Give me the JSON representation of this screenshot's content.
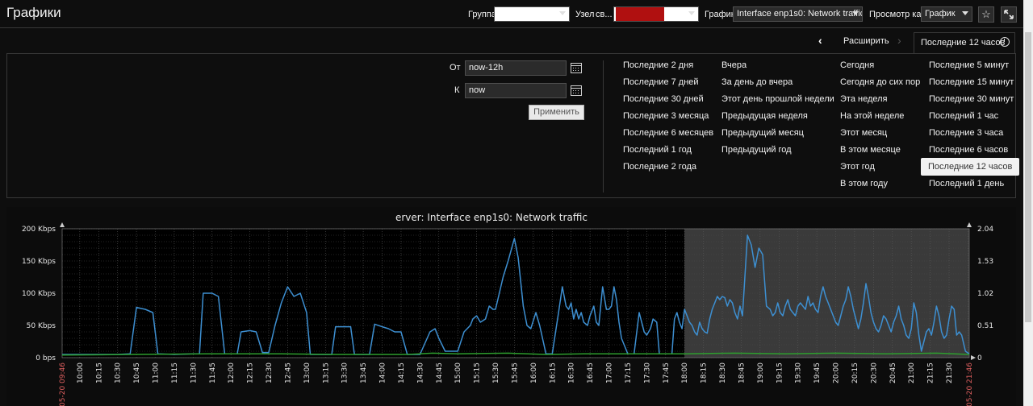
{
  "header": {
    "title": "Графики",
    "group_label": "Группа",
    "host_label": "Узел",
    "host_value": "св...",
    "graph_label": "График",
    "graph_value": "Interface enp1s0: Network traffic",
    "view_label": "Просмотр как",
    "view_value": "График"
  },
  "timebar": {
    "zoom_out": "Расширить",
    "current_period": "Последние 12 часов"
  },
  "filter": {
    "from_label": "От",
    "from_value": "now-12h",
    "to_label": "К",
    "to_value": "now",
    "apply": "Применить",
    "quick_ranges": [
      [
        "Последние 2 дня",
        "Последние 7 дней",
        "Последние 30 дней",
        "Последние 3 месяца",
        "Последние 6 месяцев",
        "Последний 1 год",
        "Последние 2 года"
      ],
      [
        "Вчера",
        "За день до вчера",
        "Этот день прошлой недели",
        "Предыдущая неделя",
        "Предыдущий месяц",
        "Предыдущий год"
      ],
      [
        "Сегодня",
        "Сегодня до сих пор",
        "Эта неделя",
        "На этой неделе",
        "Этот месяц",
        "В этом месяце",
        "Этот год",
        "В этом году"
      ],
      [
        "Последние 5 минут",
        "Последние 15 минут",
        "Последние 30 минут",
        "Последний 1 час",
        "Последние 3 часа",
        "Последние 6 часов",
        "Последние 12 часов",
        "Последний 1 день"
      ]
    ],
    "selected_range": "Последние 12 часов"
  },
  "chart_data": {
    "type": "line",
    "title": "erver: Interface enp1s0: Network traffic",
    "y_left_ticks": [
      "0 bps",
      "50 Kbps",
      "100 Kbps",
      "150 Kbps",
      "200 Kbps"
    ],
    "y_right_ticks": [
      "0",
      "0.51",
      "1.02",
      "1.53",
      "2.04"
    ],
    "ylim": [
      0,
      200
    ],
    "x_start_label": "05-20 09:46",
    "x_end_label": "05-20 21:46",
    "x_ticks": [
      "10:00",
      "10:15",
      "10:30",
      "10:45",
      "11:00",
      "11:15",
      "11:30",
      "11:45",
      "12:00",
      "12:15",
      "12:30",
      "12:45",
      "13:00",
      "13:15",
      "13:30",
      "13:45",
      "14:00",
      "14:15",
      "14:30",
      "14:45",
      "15:00",
      "15:15",
      "15:30",
      "15:45",
      "16:00",
      "16:15",
      "16:30",
      "16:45",
      "17:00",
      "17:15",
      "17:30",
      "17:45",
      "18:00",
      "18:15",
      "18:30",
      "18:45",
      "19:00",
      "19:15",
      "19:30",
      "19:45",
      "20:00",
      "20:15",
      "20:30",
      "20:45",
      "21:00",
      "21:15",
      "21:30"
    ],
    "x_range_minutes": [
      586,
      1306
    ],
    "shaded_from_minute": 1080,
    "series": [
      {
        "color": "#3d8fd1",
        "points": [
          [
            586,
            5
          ],
          [
            600,
            5
          ],
          [
            615,
            5
          ],
          [
            630,
            5
          ],
          [
            640,
            6
          ],
          [
            645,
            78
          ],
          [
            652,
            75
          ],
          [
            658,
            70
          ],
          [
            662,
            6
          ],
          [
            675,
            5
          ],
          [
            690,
            6
          ],
          [
            695,
            6
          ],
          [
            698,
            100
          ],
          [
            705,
            100
          ],
          [
            710,
            95
          ],
          [
            715,
            6
          ],
          [
            725,
            6
          ],
          [
            728,
            40
          ],
          [
            735,
            42
          ],
          [
            740,
            40
          ],
          [
            745,
            8
          ],
          [
            750,
            8
          ],
          [
            755,
            50
          ],
          [
            760,
            85
          ],
          [
            765,
            110
          ],
          [
            770,
            95
          ],
          [
            775,
            100
          ],
          [
            780,
            70
          ],
          [
            783,
            5
          ],
          [
            795,
            5
          ],
          [
            800,
            5
          ],
          [
            803,
            48
          ],
          [
            810,
            48
          ],
          [
            815,
            48
          ],
          [
            818,
            5
          ],
          [
            830,
            5
          ],
          [
            834,
            52
          ],
          [
            840,
            48
          ],
          [
            845,
            45
          ],
          [
            850,
            40
          ],
          [
            855,
            40
          ],
          [
            860,
            5
          ],
          [
            870,
            5
          ],
          [
            878,
            40
          ],
          [
            882,
            45
          ],
          [
            885,
            30
          ],
          [
            890,
            10
          ],
          [
            900,
            10
          ],
          [
            905,
            40
          ],
          [
            910,
            50
          ],
          [
            912,
            60
          ],
          [
            915,
            65
          ],
          [
            918,
            55
          ],
          [
            922,
            60
          ],
          [
            925,
            80
          ],
          [
            928,
            75
          ],
          [
            930,
            75
          ],
          [
            933,
            100
          ],
          [
            936,
            125
          ],
          [
            940,
            150
          ],
          [
            945,
            185
          ],
          [
            948,
            155
          ],
          [
            952,
            80
          ],
          [
            955,
            50
          ],
          [
            958,
            45
          ],
          [
            962,
            70
          ],
          [
            965,
            50
          ],
          [
            970,
            6
          ],
          [
            975,
            6
          ],
          [
            980,
            70
          ],
          [
            983,
            110
          ],
          [
            986,
            80
          ],
          [
            988,
            75
          ],
          [
            990,
            85
          ],
          [
            992,
            60
          ],
          [
            994,
            75
          ],
          [
            996,
            60
          ],
          [
            998,
            70
          ],
          [
            1000,
            55
          ],
          [
            1003,
            50
          ],
          [
            1005,
            65
          ],
          [
            1008,
            80
          ],
          [
            1010,
            55
          ],
          [
            1012,
            50
          ],
          [
            1015,
            110
          ],
          [
            1018,
            75
          ],
          [
            1020,
            75
          ],
          [
            1022,
            80
          ],
          [
            1024,
            110
          ],
          [
            1026,
            90
          ],
          [
            1028,
            55
          ],
          [
            1030,
            30
          ],
          [
            1035,
            6
          ],
          [
            1040,
            6
          ],
          [
            1044,
            70
          ],
          [
            1048,
            40
          ],
          [
            1050,
            35
          ],
          [
            1053,
            45
          ],
          [
            1055,
            60
          ],
          [
            1058,
            55
          ],
          [
            1060,
            6
          ],
          [
            1065,
            6
          ],
          [
            1070,
            6
          ],
          [
            1072,
            60
          ],
          [
            1074,
            70
          ],
          [
            1076,
            55
          ],
          [
            1078,
            45
          ],
          [
            1080,
            75
          ],
          [
            1082,
            65
          ],
          [
            1084,
            55
          ],
          [
            1086,
            50
          ],
          [
            1088,
            40
          ],
          [
            1090,
            35
          ],
          [
            1092,
            55
          ],
          [
            1094,
            45
          ],
          [
            1096,
            40
          ],
          [
            1098,
            38
          ],
          [
            1100,
            60
          ],
          [
            1102,
            75
          ],
          [
            1104,
            85
          ],
          [
            1106,
            95
          ],
          [
            1108,
            90
          ],
          [
            1110,
            95
          ],
          [
            1112,
            93
          ],
          [
            1114,
            80
          ],
          [
            1116,
            90
          ],
          [
            1118,
            85
          ],
          [
            1120,
            70
          ],
          [
            1122,
            60
          ],
          [
            1124,
            80
          ],
          [
            1126,
            65
          ],
          [
            1130,
            190
          ],
          [
            1133,
            175
          ],
          [
            1136,
            140
          ],
          [
            1139,
            170
          ],
          [
            1142,
            160
          ],
          [
            1145,
            80
          ],
          [
            1148,
            75
          ],
          [
            1150,
            65
          ],
          [
            1152,
            70
          ],
          [
            1154,
            85
          ],
          [
            1156,
            70
          ],
          [
            1158,
            65
          ],
          [
            1160,
            80
          ],
          [
            1162,
            90
          ],
          [
            1164,
            75
          ],
          [
            1166,
            70
          ],
          [
            1168,
            65
          ],
          [
            1170,
            80
          ],
          [
            1172,
            85
          ],
          [
            1174,
            80
          ],
          [
            1176,
            75
          ],
          [
            1178,
            95
          ],
          [
            1180,
            80
          ],
          [
            1182,
            85
          ],
          [
            1184,
            75
          ],
          [
            1186,
            70
          ],
          [
            1188,
            95
          ],
          [
            1190,
            110
          ],
          [
            1192,
            95
          ],
          [
            1194,
            85
          ],
          [
            1196,
            75
          ],
          [
            1198,
            65
          ],
          [
            1200,
            55
          ],
          [
            1202,
            50
          ],
          [
            1204,
            65
          ],
          [
            1206,
            80
          ],
          [
            1208,
            90
          ],
          [
            1210,
            110
          ],
          [
            1212,
            95
          ],
          [
            1214,
            75
          ],
          [
            1216,
            60
          ],
          [
            1218,
            45
          ],
          [
            1220,
            60
          ],
          [
            1222,
            85
          ],
          [
            1224,
            115
          ],
          [
            1226,
            95
          ],
          [
            1228,
            70
          ],
          [
            1230,
            55
          ],
          [
            1232,
            45
          ],
          [
            1234,
            40
          ],
          [
            1236,
            50
          ],
          [
            1238,
            65
          ],
          [
            1240,
            60
          ],
          [
            1242,
            50
          ],
          [
            1244,
            40
          ],
          [
            1246,
            55
          ],
          [
            1248,
            65
          ],
          [
            1250,
            80
          ],
          [
            1252,
            60
          ],
          [
            1254,
            50
          ],
          [
            1256,
            35
          ],
          [
            1258,
            30
          ],
          [
            1260,
            45
          ],
          [
            1262,
            85
          ],
          [
            1264,
            70
          ],
          [
            1266,
            35
          ],
          [
            1268,
            10
          ],
          [
            1272,
            40
          ],
          [
            1274,
            45
          ],
          [
            1276,
            35
          ],
          [
            1278,
            55
          ],
          [
            1280,
            80
          ],
          [
            1282,
            65
          ],
          [
            1284,
            40
          ],
          [
            1286,
            30
          ],
          [
            1288,
            35
          ],
          [
            1290,
            60
          ],
          [
            1292,
            80
          ],
          [
            1294,
            75
          ],
          [
            1296,
            35
          ],
          [
            1298,
            40
          ],
          [
            1300,
            35
          ],
          [
            1303,
            10
          ],
          [
            1306,
            6
          ]
        ]
      },
      {
        "color": "#2e9e2e",
        "points": [
          [
            586,
            4
          ],
          [
            640,
            5
          ],
          [
            700,
            6
          ],
          [
            760,
            6
          ],
          [
            800,
            5
          ],
          [
            860,
            5
          ],
          [
            880,
            7
          ],
          [
            900,
            6
          ],
          [
            940,
            7
          ],
          [
            970,
            5
          ],
          [
            1000,
            6
          ],
          [
            1040,
            6
          ],
          [
            1080,
            6
          ],
          [
            1120,
            7
          ],
          [
            1160,
            6
          ],
          [
            1200,
            7
          ],
          [
            1240,
            6
          ],
          [
            1280,
            7
          ],
          [
            1306,
            5
          ]
        ]
      }
    ]
  }
}
